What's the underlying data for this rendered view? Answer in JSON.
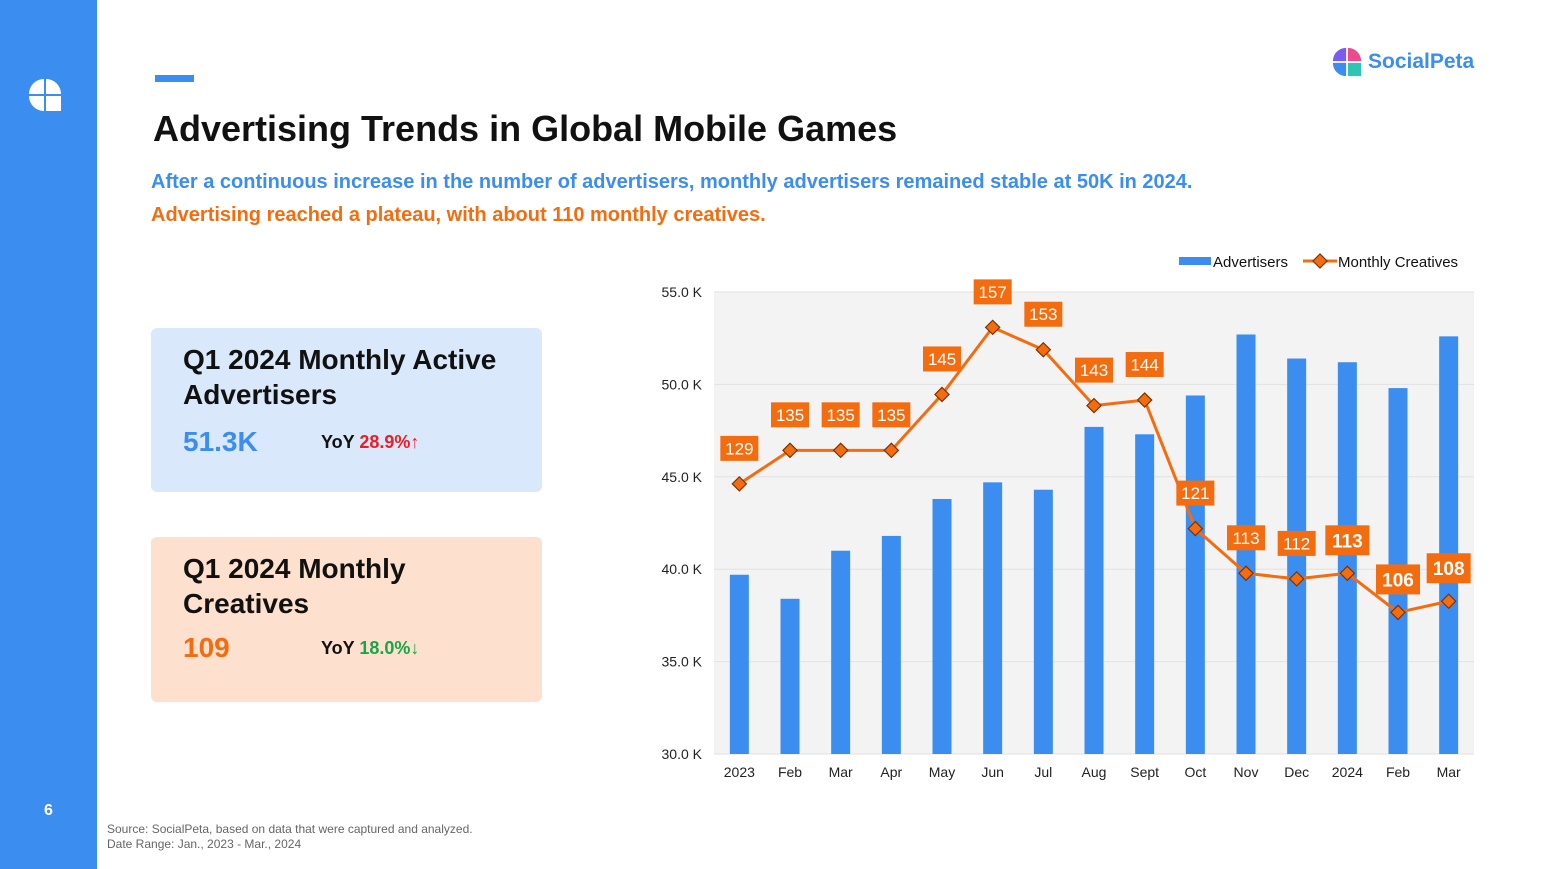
{
  "page": {
    "number": "6",
    "brand": "SocialPeta",
    "title": "Advertising Trends in Global Mobile Games",
    "subtitle_blue": "After a continuous increase in the number of advertisers, monthly advertisers remained stable at 50K in 2024.",
    "subtitle_orange": "Advertising reached a plateau, with about 110 monthly creatives.",
    "source_line1": "Source: SocialPeta, based on data that were captured and analyzed.",
    "source_line2": "Date Range: Jan., 2023 - Mar., 2024"
  },
  "cards": {
    "advertisers": {
      "title": "Q1 2024 Monthly Active Advertisers",
      "value": "51.3K",
      "yoy_label": "YoY",
      "yoy_value": "28.9%↑"
    },
    "creatives": {
      "title": "Q1 2024 Monthly Creatives",
      "value": "109",
      "yoy_label": "YoY",
      "yoy_value": "18.0%↓"
    }
  },
  "colors": {
    "primary_blue": "#3b8ef0",
    "orange": "#f46c10",
    "up_red": "#ee1c25",
    "down_green": "#18a649",
    "blue_card_bg": "#dae8fb",
    "orange_card_bg": "#fde0cd"
  },
  "icons": {
    "sidebar_logo": "socialpeta-logo-icon",
    "brand_logo": "socialpeta-logo-icon"
  },
  "chart_data": {
    "type": "bar",
    "categories": [
      "2023",
      "Feb",
      "Mar",
      "Apr",
      "May",
      "Jun",
      "Jul",
      "Aug",
      "Sept",
      "Oct",
      "Nov",
      "Dec",
      "2024",
      "Feb",
      "Mar"
    ],
    "series": [
      {
        "name": "Advertisers",
        "type": "bar",
        "color": "#3b8ef0",
        "values": [
          39.7,
          38.4,
          41.0,
          41.8,
          43.8,
          44.7,
          44.3,
          47.7,
          47.3,
          49.4,
          52.7,
          51.4,
          51.2,
          49.8,
          52.6
        ]
      },
      {
        "name": "Monthly Creatives",
        "type": "line",
        "color": "#f46c10",
        "values": [
          129,
          135,
          135,
          135,
          145,
          157,
          153,
          143,
          144,
          121,
          113,
          112,
          113,
          106,
          108
        ],
        "labels": [
          "129",
          "135",
          "135",
          "135",
          "145",
          "157",
          "153",
          "143",
          "144",
          "121",
          "113",
          "112",
          "113",
          "106",
          "108"
        ]
      }
    ],
    "y_ticks": [
      "30.0 K",
      "35.0 K",
      "40.0 K",
      "45.0 K",
      "50.0 K",
      "55.0 K"
    ],
    "ylim": [
      30,
      55
    ],
    "grid": true,
    "legend": "top-right"
  }
}
